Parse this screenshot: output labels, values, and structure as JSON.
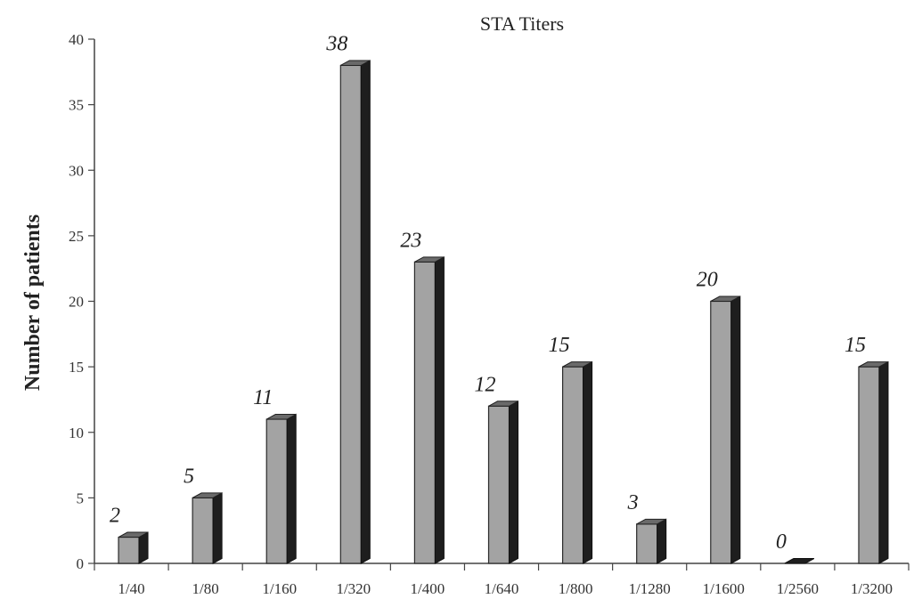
{
  "chart_data": {
    "type": "bar",
    "title": "STA Titers",
    "xlabel": "",
    "ylabel": "Number of patients",
    "categories": [
      "1/40",
      "1/80",
      "1/160",
      "1/320",
      "1/400",
      "1/640",
      "1/800",
      "1/1280",
      "1/1600",
      "1/2560",
      "1/3200"
    ],
    "values": [
      2,
      5,
      11,
      38,
      23,
      12,
      15,
      3,
      20,
      0,
      15
    ],
    "data_labels": [
      "2",
      "5",
      "11",
      "38",
      "23",
      "12",
      "15",
      "3",
      "20",
      "0",
      "15"
    ],
    "ylim": [
      0,
      40
    ],
    "yticks": [
      0,
      5,
      10,
      15,
      20,
      25,
      30,
      35,
      40
    ],
    "grid": false,
    "bar_style": "3d",
    "colors": {
      "front": "#a3a3a3",
      "side": "#1e1e1e",
      "top": "#6a6a6a",
      "axis": "#444444"
    }
  }
}
